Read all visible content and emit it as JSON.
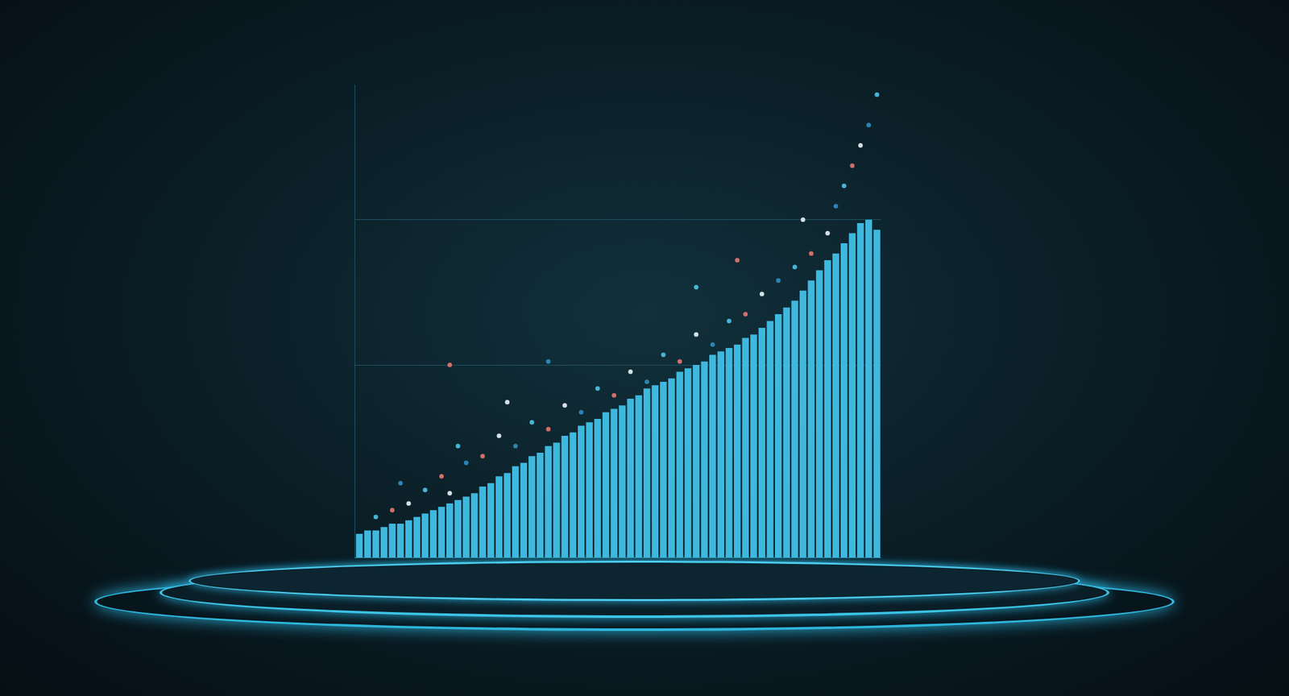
{
  "chart_data": {
    "type": "bar",
    "x": [
      1,
      2,
      3,
      4,
      5,
      6,
      7,
      8,
      9,
      10,
      11,
      12,
      13,
      14,
      15,
      16,
      17,
      18,
      19,
      20,
      21,
      22,
      23,
      24,
      25,
      26,
      27,
      28,
      29,
      30,
      31,
      32,
      33,
      34,
      35,
      36,
      37,
      38,
      39,
      40,
      41,
      42,
      43,
      44,
      45,
      46,
      47,
      48,
      49,
      50,
      51,
      52,
      53,
      54,
      55,
      56,
      57,
      58,
      59,
      60,
      61,
      62,
      63,
      64
    ],
    "xlim": [
      0.5,
      64.5
    ],
    "ylim": [
      0,
      140
    ],
    "yticks": [
      0,
      57,
      100
    ],
    "grid": true,
    "tick_labels": false,
    "series": [
      {
        "type": "bar",
        "color": "#3fb8de",
        "values": [
          7,
          8,
          8,
          9,
          10,
          10,
          11,
          12,
          13,
          14,
          15,
          16,
          17,
          18,
          19,
          21,
          22,
          24,
          25,
          27,
          28,
          30,
          31,
          33,
          34,
          36,
          37,
          39,
          40,
          41,
          43,
          44,
          45,
          47,
          48,
          50,
          51,
          52,
          53,
          55,
          56,
          57,
          58,
          60,
          61,
          62,
          63,
          65,
          66,
          68,
          70,
          72,
          74,
          76,
          79,
          82,
          85,
          88,
          90,
          93,
          96,
          99,
          100,
          97
        ]
      },
      {
        "type": "scatter",
        "marker": "circle",
        "x": [
          3,
          5,
          7,
          6,
          9,
          11,
          12,
          14,
          13,
          16,
          18,
          20,
          22,
          24,
          26,
          28,
          30,
          32,
          34,
          36,
          38,
          40,
          42,
          44,
          46,
          48,
          50,
          52,
          54,
          56,
          58,
          59,
          60,
          61,
          62,
          63,
          64,
          12,
          19,
          24,
          42,
          47,
          55
        ],
        "values": [
          12,
          14,
          16,
          22,
          20,
          24,
          19,
          28,
          33,
          30,
          36,
          33,
          40,
          38,
          45,
          43,
          50,
          48,
          55,
          52,
          60,
          58,
          66,
          63,
          70,
          72,
          78,
          82,
          86,
          90,
          96,
          104,
          110,
          116,
          122,
          128,
          137,
          57,
          46,
          58,
          80,
          88,
          100
        ],
        "colors": [
          "#4fc3e8",
          "#e8776f",
          "#e9f4f7",
          "#2f8fc0",
          "#4fc3e8",
          "#e8776f",
          "#e9f4f7",
          "#2f8fc0",
          "#4fc3e8",
          "#e8776f",
          "#e9f4f7",
          "#2f8fc0",
          "#4fc3e8",
          "#e8776f",
          "#e9f4f7",
          "#2f8fc0",
          "#4fc3e8",
          "#e8776f",
          "#e9f4f7",
          "#2f8fc0",
          "#4fc3e8",
          "#e8776f",
          "#e9f4f7",
          "#2f8fc0",
          "#4fc3e8",
          "#e8776f",
          "#e9f4f7",
          "#2f8fc0",
          "#4fc3e8",
          "#e8776f",
          "#e9f4f7",
          "#2f8fc0",
          "#4fc3e8",
          "#e8776f",
          "#e9f4f7",
          "#2f8fc0",
          "#4fc3e8",
          "#e8776f",
          "#e9f4f7",
          "#2f8fc0",
          "#4fc3e8",
          "#e8776f",
          "#e9f4f7"
        ]
      }
    ]
  }
}
